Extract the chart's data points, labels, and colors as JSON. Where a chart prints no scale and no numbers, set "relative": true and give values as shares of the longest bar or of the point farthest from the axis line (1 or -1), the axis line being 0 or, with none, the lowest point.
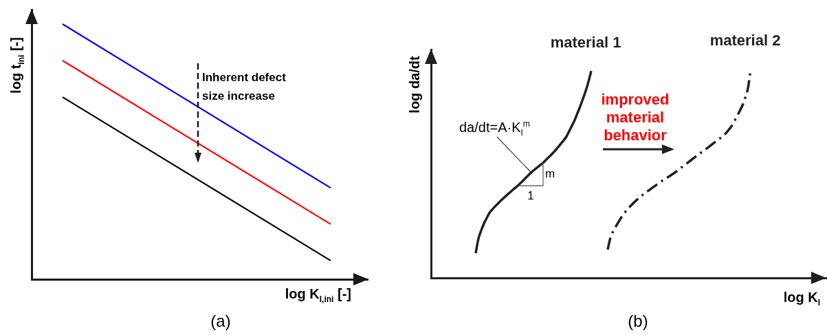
{
  "chart_data": [
    {
      "type": "line",
      "title": "(a)",
      "xlabel": "log K$_{I,ini}$ [-]",
      "ylabel": "log t$_{ini}$ [-]",
      "relative": true,
      "tick_labels": false,
      "categories": [
        null,
        null
      ],
      "series": [
        {
          "color": "#0000ff",
          "values": [
            1,
            0.358
          ]
        },
        {
          "color": "#ff0000",
          "values": [
            0.857,
            0.216
          ]
        },
        {
          "color": "#000000",
          "values": [
            0.714,
            0.073
          ]
        }
      ],
      "annotations": [
        "Inherent defect\nsize increase"
      ]
    },
    {
      "type": "line",
      "title": "(b)",
      "xlabel": "log K$_{I}$",
      "ylabel": "log da/dt",
      "relative": true,
      "tick_labels": false,
      "categories": [
        null,
        null,
        null,
        null,
        null,
        null,
        null,
        null,
        null,
        null,
        null,
        null,
        null,
        null,
        null,
        null,
        null,
        null,
        null,
        null,
        null,
        null,
        null,
        null,
        null,
        null,
        null,
        null,
        null,
        null,
        null,
        null,
        null,
        null,
        null,
        null,
        null,
        null,
        null,
        null,
        null,
        null,
        null,
        null,
        null,
        null,
        null,
        null,
        null,
        null,
        null,
        null,
        null,
        null,
        null,
        null,
        null,
        null,
        null,
        null,
        null,
        null,
        null,
        null,
        null,
        null,
        null,
        null,
        null,
        null,
        null,
        null,
        null,
        null,
        null,
        null,
        null,
        null,
        null,
        null,
        null,
        null,
        null,
        null,
        null,
        null,
        null,
        null,
        null,
        null,
        null,
        null,
        null,
        null,
        null,
        null,
        null,
        null,
        null,
        null,
        null
      ],
      "series": [
        {
          "name": "material 1",
          "color": "#231f20",
          "line_style": "solid",
          "values": [
            0.118,
            0.188,
            0.227,
            0.26,
            0.286,
            0.311,
            0.327,
            0.341,
            0.354,
            0.368,
            0.38,
            0.392,
            0.404,
            0.415,
            0.427,
            0.438,
            0.45,
            0.462,
            0.476,
            0.489,
            0.502,
            0.514,
            0.524,
            0.535,
            0.545,
            0.557,
            0.57,
            0.583,
            0.596,
            0.611,
            0.626,
            0.642,
            0.658,
            0.676,
            0.702,
            0.728,
            0.755,
            0.788,
            0.82,
            0.857,
            0.894,
            0.938,
            0.99,
            null,
            null,
            null,
            null,
            null,
            null,
            null,
            null,
            null,
            null,
            null,
            null,
            null,
            null,
            null,
            null,
            null,
            null,
            null,
            null,
            null,
            null,
            null,
            null,
            null,
            null,
            null,
            null,
            null,
            null,
            null,
            null,
            null,
            null,
            null,
            null,
            null,
            null,
            null,
            null,
            null,
            null,
            null,
            null,
            null,
            null,
            null,
            null,
            null,
            null,
            null,
            null,
            null,
            null,
            null,
            null,
            null,
            null
          ]
        },
        {
          "name": "material 2",
          "color": "#231f20",
          "line_style": "dashdot",
          "values": [
            null,
            null,
            null,
            null,
            null,
            null,
            null,
            null,
            null,
            null,
            null,
            null,
            null,
            null,
            null,
            null,
            null,
            null,
            null,
            null,
            null,
            null,
            null,
            null,
            null,
            null,
            null,
            null,
            null,
            null,
            null,
            null,
            null,
            null,
            null,
            null,
            null,
            null,
            null,
            null,
            null,
            null,
            null,
            null,
            null,
            null,
            null,
            null,
            0.135,
            0.193,
            0.223,
            0.247,
            0.269,
            0.29,
            0.308,
            0.326,
            0.34,
            0.353,
            0.366,
            0.378,
            0.389,
            0.4,
            0.41,
            0.419,
            0.429,
            0.438,
            0.448,
            0.457,
            0.466,
            0.474,
            0.483,
            0.491,
            0.5,
            0.509,
            0.519,
            0.53,
            0.54,
            0.55,
            0.56,
            0.57,
            0.58,
            0.59,
            0.6,
            0.61,
            0.619,
            0.629,
            0.639,
            0.649,
            0.659,
            0.669,
            0.679,
            0.692,
            0.708,
            0.725,
            0.748,
            0.772,
            0.798,
            0.825,
            0.86,
            0.907,
            1
          ]
        }
      ],
      "annotations": [
        "da/dt=A·K$_{I}$$^{m}$",
        "m",
        "1",
        "improved\nmaterial\nbehavior"
      ]
    }
  ]
}
